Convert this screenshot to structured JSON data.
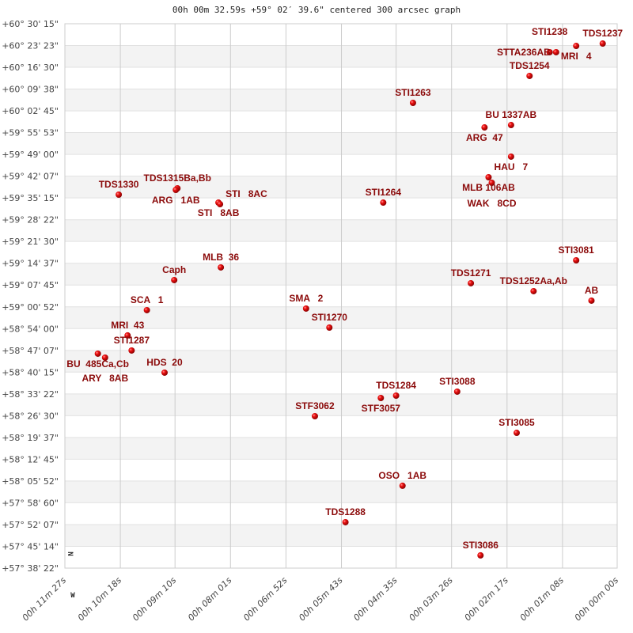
{
  "chart_data": {
    "type": "scatter",
    "title": "00h 00m 32.59s +59° 02′ 39.6\" centered 300 arcsec graph",
    "xlabel": "",
    "ylabel": "",
    "x_axis": "right ascension (decreasing to the right)",
    "xlim": [
      "00h 11m 27s",
      "00h 00m 00s"
    ],
    "ylim": [
      "+57° 38' 22\"",
      "+60° 30' 15\""
    ],
    "grid": true,
    "x_ticks": [
      "00h 11m 27s",
      "00h 10m 18s",
      "00h 09m 10s",
      "00h 08m 01s",
      "00h 06m 52s",
      "00h 05m 43s",
      "00h 04m 35s",
      "00h 03m 26s",
      "00h 02m 17s",
      "00h 01m 08s",
      "00h 00m 00s"
    ],
    "y_ticks": [
      "+60° 30' 15\"",
      "+60° 23' 23\"",
      "+60° 16' 30\"",
      "+60° 09' 38\"",
      "+60° 02' 45\"",
      "+59° 55' 53\"",
      "+59° 49' 00\"",
      "+59° 42' 07\"",
      "+59° 35' 15\"",
      "+59° 28' 22\"",
      "+59° 21' 30\"",
      "+59° 14' 37\"",
      "+59° 07' 45\"",
      "+59° 00' 52\"",
      "+58° 54' 00\"",
      "+58° 47' 07\"",
      "+58° 40' 15\"",
      "+58° 33' 22\"",
      "+58° 26' 30\"",
      "+58° 19' 37\"",
      "+58° 12' 45\"",
      "+58° 05' 52\"",
      "+57° 58' 60\"",
      "+57° 52' 07\"",
      "+57° 45' 14\"",
      "+57° 38' 22\""
    ],
    "compass": {
      "north": "N",
      "west": "W"
    },
    "marker_color": "#e00000",
    "label_color": "#8b0a0a",
    "points": [
      {
        "name": "TDS1237",
        "ra": "00h 00m 18s",
        "dec": "+60° 24' 00\""
      },
      {
        "name": "MRI   4",
        "ra": "00h 00m 51s",
        "dec": "+60° 23' 15\""
      },
      {
        "name": "STTA236AB",
        "ra": "00h 01m 16s",
        "dec": "+60° 21' 16\""
      },
      {
        "name": "STI1238",
        "ra": "00h 01m 24s",
        "dec": "+60° 21' 16\""
      },
      {
        "name": "TDS1254",
        "ra": "00h 01m 49s",
        "dec": "+60° 13' 46\""
      },
      {
        "name": "STI1263",
        "ra": "00h 04m 14s",
        "dec": "+60° 05' 16\""
      },
      {
        "name": "BU 1337AB",
        "ra": "00h 02m 12s",
        "dec": "+59° 58' 16\""
      },
      {
        "name": "ARG  47",
        "ra": "00h 02m 45s",
        "dec": "+59° 57' 31\""
      },
      {
        "name": "HAU   7",
        "ra": "00h 02m 12s",
        "dec": "+59° 48' 17\""
      },
      {
        "name": "MLB 106AB",
        "ra": "00h 02m 40s",
        "dec": "+59° 41' 47\""
      },
      {
        "name": "WAK   8CD",
        "ra": "00h 02m 36s",
        "dec": "+59° 40' 02\""
      },
      {
        "name": "TDS1315Ba,Bb",
        "ra": "00h 09m 07s",
        "dec": "+59° 38' 17\""
      },
      {
        "name": "ARG   1AB",
        "ra": "00h 09m 09s",
        "dec": "+59° 37' 47\""
      },
      {
        "name": "TDS1330",
        "ra": "00h 10m 20s",
        "dec": "+59° 36' 17\""
      },
      {
        "name": "STI   8AB",
        "ra": "00h 08m 16s",
        "dec": "+59° 33' 47\""
      },
      {
        "name": "STI   8AC",
        "ra": "00h 08m 14s",
        "dec": "+59° 33' 17\""
      },
      {
        "name": "STI1264",
        "ra": "00h 04m 51s",
        "dec": "+59° 33' 47\""
      },
      {
        "name": "STI3081",
        "ra": "00h 00m 51s",
        "dec": "+59° 15' 33\""
      },
      {
        "name": "MLB  36",
        "ra": "00h 08m 13s",
        "dec": "+59° 13' 19\""
      },
      {
        "name": "TDS1271",
        "ra": "00h 03m 02s",
        "dec": "+59° 08' 19\""
      },
      {
        "name": "Caph",
        "ra": "00h 09m 11s",
        "dec": "+59° 09' 19\""
      },
      {
        "name": "TDS1252Aa,Ab",
        "ra": "00h 01m 44s",
        "dec": "+59° 05' 49\""
      },
      {
        "name": "AB",
        "ra": "00h 00m 32s",
        "dec": "+59° 02' 49\""
      },
      {
        "name": "SMA   2",
        "ra": "00h 06m 27s",
        "dec": "+59° 00' 19\""
      },
      {
        "name": "SCA   1",
        "ra": "00h 09m 45s",
        "dec": "+58° 59' 49\""
      },
      {
        "name": "STI1270",
        "ra": "00h 05m 58s",
        "dec": "+58° 54' 19\""
      },
      {
        "name": "MRI  43",
        "ra": "00h 10m 09s",
        "dec": "+58° 51' 50\""
      },
      {
        "name": "STI1287",
        "ra": "00h 10m 04s",
        "dec": "+58° 47' 05\""
      },
      {
        "name": "BU  485Ca,Cb",
        "ra": "00h 10m 46s",
        "dec": "+58° 46' 05\""
      },
      {
        "name": "ARY   8AB",
        "ra": "00h 10m 37s",
        "dec": "+58° 44' 50\""
      },
      {
        "name": "HDS  20",
        "ra": "00h 09m 23s",
        "dec": "+58° 40' 05\""
      },
      {
        "name": "STI3088",
        "ra": "00h 03m 19s",
        "dec": "+58° 34' 05\""
      },
      {
        "name": "TDS1284",
        "ra": "00h 04m 35s",
        "dec": "+58° 32' 50\""
      },
      {
        "name": "STF3057",
        "ra": "00h 04m 54s",
        "dec": "+58° 32' 05\""
      },
      {
        "name": "STF3062",
        "ra": "00h 06m 16s",
        "dec": "+58° 26' 20\""
      },
      {
        "name": "STI3085",
        "ra": "00h 02m 05s",
        "dec": "+58° 21' 05\""
      },
      {
        "name": "OSO   1AB",
        "ra": "00h 04m 27s",
        "dec": "+58° 04' 22\""
      },
      {
        "name": "TDS1288",
        "ra": "00h 05m 38s",
        "dec": "+57° 52' 52\""
      },
      {
        "name": "STI3086",
        "ra": "00h 02m 50s",
        "dec": "+57° 42' 23\""
      }
    ]
  }
}
